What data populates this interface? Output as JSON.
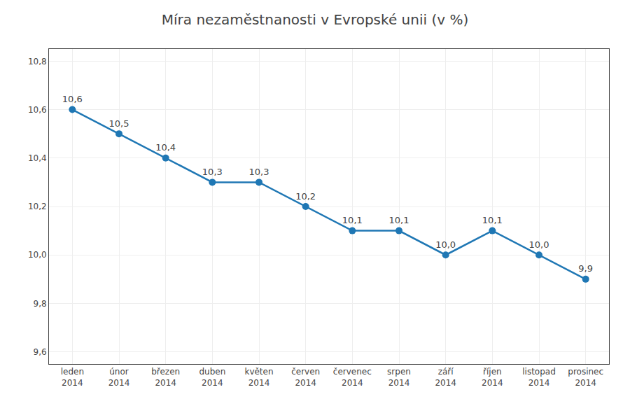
{
  "chart_data": {
    "type": "line",
    "title": "Míra nezaměstnanosti v Evropské unii (v %)",
    "categories": [
      "leden\n2014",
      "únor\n2014",
      "březen\n2014",
      "duben\n2014",
      "květen\n2014",
      "červen\n2014",
      "červenec\n2014",
      "srpen\n2014",
      "září\n2014",
      "říjen\n2014",
      "listopad\n2014",
      "prosinec\n2014"
    ],
    "values": [
      10.6,
      10.5,
      10.4,
      10.3,
      10.3,
      10.2,
      10.1,
      10.1,
      10.0,
      10.1,
      10.0,
      9.9
    ],
    "value_labels": [
      "10,6",
      "10,5",
      "10,4",
      "10,3",
      "10,3",
      "10,2",
      "10,1",
      "10,1",
      "10,0",
      "10,1",
      "10,0",
      "9,9"
    ],
    "data_labels": true,
    "ylim": [
      9.55,
      10.85
    ],
    "yticks": [
      {
        "value": 9.6,
        "label": "9,6"
      },
      {
        "value": 9.8,
        "label": "9,8"
      },
      {
        "value": 10.0,
        "label": "10,0"
      },
      {
        "value": 10.2,
        "label": "10,2"
      },
      {
        "value": 10.4,
        "label": "10,4"
      },
      {
        "value": 10.6,
        "label": "10,6"
      },
      {
        "value": 10.8,
        "label": "10,8"
      }
    ],
    "grid": true
  }
}
